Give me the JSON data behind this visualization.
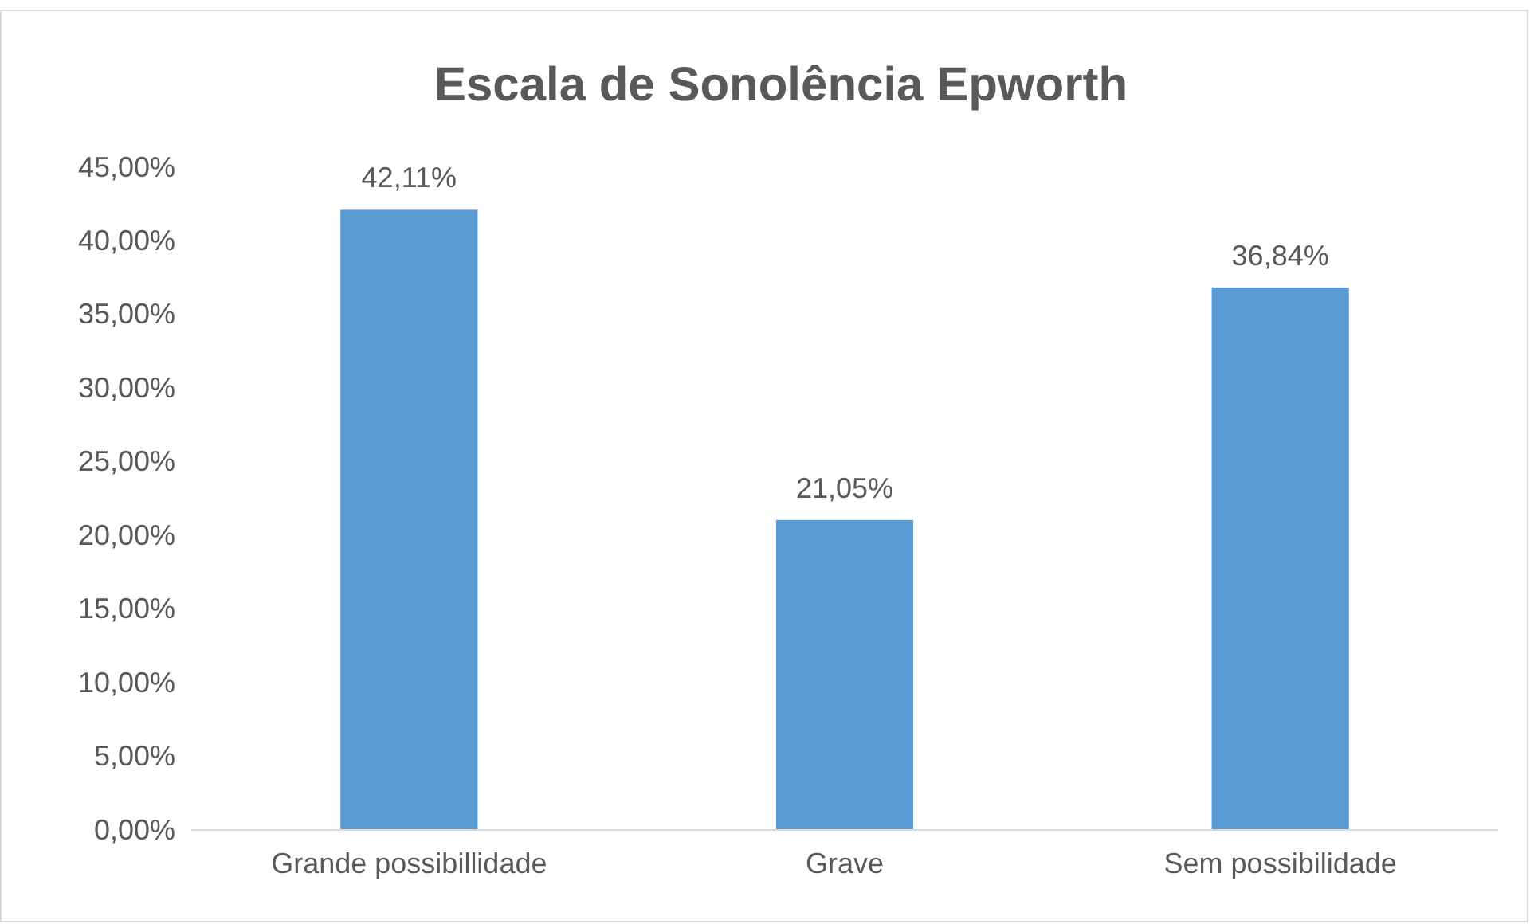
{
  "chart_data": {
    "type": "bar",
    "title": "Escala de Sonolência Epworth",
    "categories": [
      "Grande possibillidade",
      "Grave",
      "Sem possibilidade"
    ],
    "values": [
      42.11,
      21.05,
      36.84
    ],
    "value_labels": [
      "42,11%",
      "21,05%",
      "36,84%"
    ],
    "color": "#5b9bd5",
    "ylim": [
      0,
      45
    ],
    "yticks": [
      {
        "value": 0,
        "label": "0,00%"
      },
      {
        "value": 5,
        "label": "5,00%"
      },
      {
        "value": 10,
        "label": "10,00%"
      },
      {
        "value": 15,
        "label": "15,00%"
      },
      {
        "value": 20,
        "label": "20,00%"
      },
      {
        "value": 25,
        "label": "25,00%"
      },
      {
        "value": 30,
        "label": "30,00%"
      },
      {
        "value": 35,
        "label": "35,00%"
      },
      {
        "value": 40,
        "label": "40,00%"
      },
      {
        "value": 45,
        "label": "45,00%"
      }
    ],
    "grid": false
  }
}
